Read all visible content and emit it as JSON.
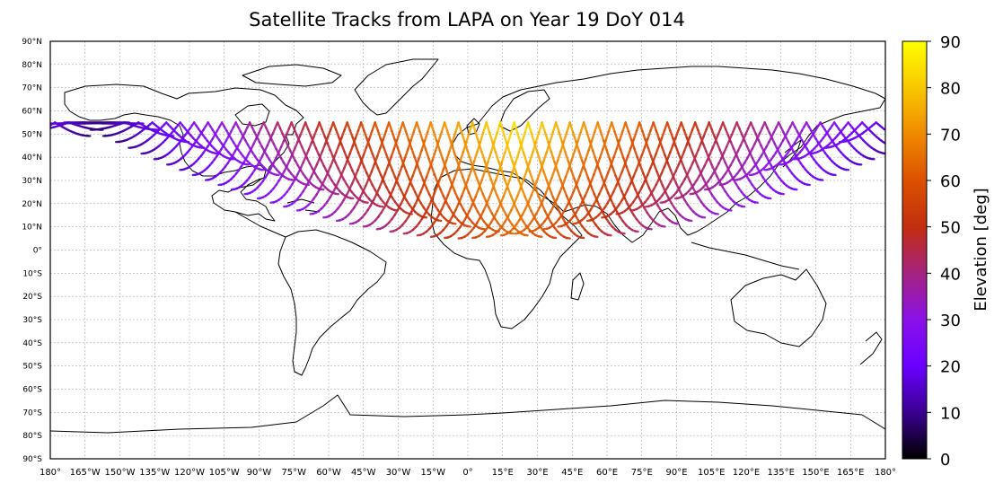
{
  "title": "Satellite Tracks from LAPA on Year 19 DoY 014",
  "map": {
    "lat_ticks": [
      "90°N",
      "80°N",
      "70°N",
      "60°N",
      "50°N",
      "40°N",
      "30°N",
      "20°N",
      "10°N",
      "0°",
      "10°S",
      "20°S",
      "30°S",
      "40°S",
      "50°S",
      "60°S",
      "70°S",
      "80°S",
      "90°S"
    ],
    "lon_ticks": [
      "180°",
      "165°W",
      "150°W",
      "135°W",
      "120°W",
      "105°W",
      "90°W",
      "75°W",
      "60°W",
      "45°W",
      "30°W",
      "15°W",
      "0°",
      "15°E",
      "30°E",
      "45°E",
      "60°E",
      "75°E",
      "90°E",
      "105°E",
      "120°E",
      "135°E",
      "150°E",
      "165°E",
      "180°"
    ],
    "station": "LAPA",
    "grid": true,
    "colors": {
      "land_outline": "#000000",
      "gridline": "#9a9a9a",
      "border": "#000000"
    }
  },
  "colorbar": {
    "label": "Elevation [deg]",
    "ticks": [
      "0",
      "10",
      "20",
      "30",
      "40",
      "50",
      "60",
      "70",
      "80",
      "90"
    ],
    "min": 0,
    "max": 90,
    "colormap": "gnuplot",
    "stops": [
      "#000000",
      "#3a0090",
      "#6a00ff",
      "#8a12e8",
      "#a5237f",
      "#c22e0f",
      "#dc5100",
      "#ef8a00",
      "#f8c800",
      "#ffff00"
    ]
  },
  "tracks": {
    "longitude_range_deg": [
      -180,
      180
    ],
    "max_latitude_deg": 55,
    "min_latitude_deg": 5,
    "peak_elevation_region": "Central Europe",
    "peak_elevation_deg": 85
  }
}
